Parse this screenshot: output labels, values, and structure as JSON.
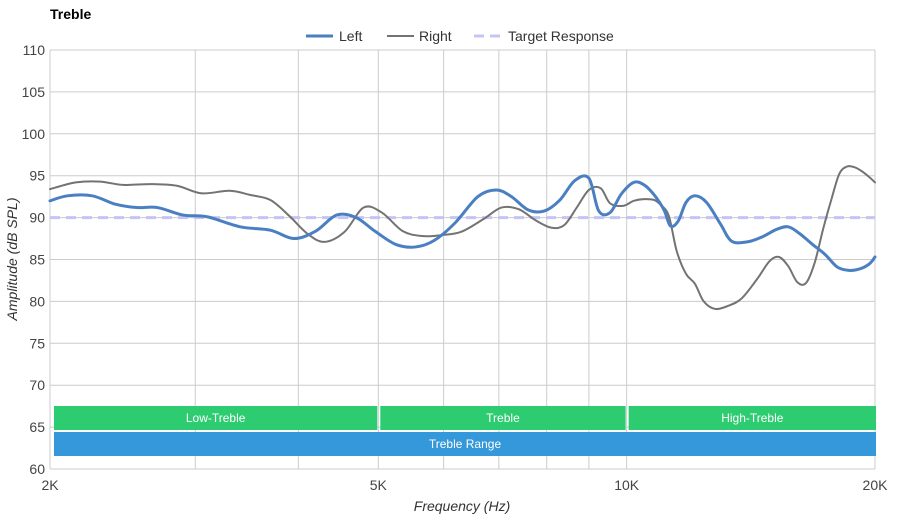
{
  "chart_data": {
    "type": "line",
    "title": "Treble",
    "xlabel": "Frequency (Hz)",
    "ylabel": "Amplitude (dB SPL)",
    "xscale": "log",
    "xlim": [
      2000,
      20000
    ],
    "ylim": [
      60,
      110
    ],
    "xticks": [
      {
        "value": 2000,
        "label": "2K"
      },
      {
        "value": 5000,
        "label": "5K"
      },
      {
        "value": 10000,
        "label": "10K"
      },
      {
        "value": 20000,
        "label": "20K"
      }
    ],
    "yticks": [
      60,
      65,
      70,
      75,
      80,
      85,
      90,
      95,
      100,
      105,
      110
    ],
    "x_gridlines": [
      2000,
      3000,
      4000,
      5000,
      6000,
      7000,
      8000,
      9000,
      10000,
      20000
    ],
    "legend_position": "top-center",
    "series": [
      {
        "name": "Left",
        "color": "#4a7fc1",
        "style": "solid-thick",
        "x": [
          2000,
          2100,
          2250,
          2400,
          2550,
          2700,
          2900,
          3100,
          3400,
          3700,
          3950,
          4200,
          4450,
          4700,
          4950,
          5250,
          5550,
          5850,
          6200,
          6600,
          6950,
          7250,
          7600,
          7950,
          8300,
          8650,
          9000,
          9250,
          9550,
          9850,
          10200,
          10500,
          10800,
          11100,
          11300,
          11550,
          11800,
          12100,
          12500,
          13000,
          13400,
          14000,
          14600,
          15200,
          15700,
          16200,
          16800,
          17400,
          18000,
          18600,
          19200,
          19700,
          20000
        ],
        "values": [
          92.0,
          92.6,
          92.6,
          91.6,
          91.2,
          91.2,
          90.3,
          90.1,
          88.9,
          88.5,
          87.5,
          88.4,
          90.3,
          90.0,
          88.4,
          86.8,
          86.5,
          87.3,
          89.4,
          92.5,
          93.3,
          92.5,
          90.9,
          90.8,
          92.1,
          94.4,
          94.7,
          90.8,
          90.6,
          92.8,
          94.2,
          93.9,
          92.7,
          90.9,
          89.0,
          89.6,
          91.8,
          92.6,
          91.8,
          89.2,
          87.2,
          87.1,
          87.7,
          88.6,
          88.9,
          88.1,
          86.8,
          85.6,
          84.1,
          83.7,
          83.9,
          84.5,
          85.3
        ]
      },
      {
        "name": "Right",
        "color": "#737373",
        "style": "solid-thin",
        "x": [
          2000,
          2150,
          2300,
          2450,
          2650,
          2850,
          3050,
          3300,
          3500,
          3700,
          3900,
          4100,
          4300,
          4550,
          4800,
          5050,
          5350,
          5650,
          5950,
          6300,
          6700,
          7050,
          7400,
          7750,
          8100,
          8400,
          8700,
          9000,
          9300,
          9550,
          9900,
          10200,
          10500,
          10800,
          11000,
          11250,
          11500,
          11800,
          12100,
          12400,
          12800,
          13300,
          13800,
          14400,
          14900,
          15300,
          15700,
          16100,
          16500,
          16900,
          17300,
          17700,
          18100,
          18500,
          18900,
          19300,
          19700,
          20000
        ],
        "values": [
          93.4,
          94.2,
          94.3,
          93.9,
          94.0,
          93.8,
          92.9,
          93.2,
          92.7,
          92.1,
          90.2,
          88.1,
          87.1,
          88.3,
          91.2,
          90.6,
          88.4,
          87.8,
          87.9,
          88.3,
          89.8,
          91.2,
          91.0,
          89.7,
          88.8,
          89.1,
          91.2,
          93.3,
          93.5,
          91.7,
          91.4,
          92.0,
          92.2,
          92.1,
          91.5,
          90.2,
          86.0,
          83.3,
          82.1,
          80.0,
          79.1,
          79.5,
          80.4,
          82.7,
          84.8,
          85.3,
          84.2,
          82.3,
          82.2,
          84.6,
          88.6,
          92.1,
          95.2,
          96.1,
          96.0,
          95.5,
          94.8,
          94.2
        ]
      },
      {
        "name": "Target Response",
        "color": "#c4c4f7",
        "style": "dashed",
        "x": [
          2000,
          20000
        ],
        "values": [
          90.0,
          90.0
        ]
      }
    ],
    "bands": [
      {
        "label": "Low-Treble",
        "start": 2000,
        "end": 5000,
        "color": "#2ecc71",
        "row": 1
      },
      {
        "label": "Treble",
        "start": 5000,
        "end": 10000,
        "color": "#2ecc71",
        "row": 1
      },
      {
        "label": "High-Treble",
        "start": 10000,
        "end": 20000,
        "color": "#2ecc71",
        "row": 1
      },
      {
        "label": "Treble Range",
        "start": 2000,
        "end": 20000,
        "color": "#3498db",
        "row": 2
      }
    ],
    "colors": {
      "grid": "#cccccc",
      "axis_text": "#444444"
    }
  }
}
